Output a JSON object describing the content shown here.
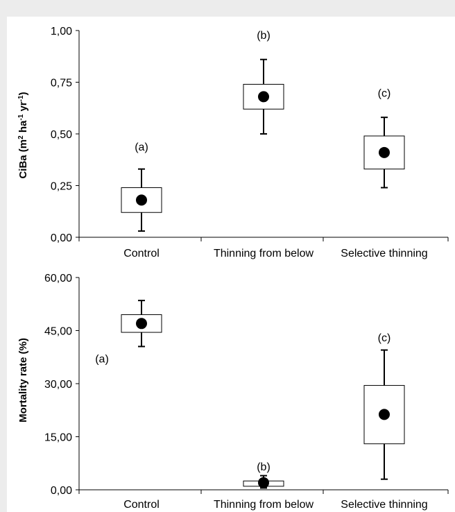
{
  "chart_data": [
    {
      "type": "box",
      "categories": [
        "Control",
        "Thinning from below",
        "Selective thinning"
      ],
      "ylabel_main": "CiBa (m",
      "ylabel_sup1": "2",
      "ylabel_mid": " ha",
      "ylabel_sup2": "-1",
      "ylabel_mid2": " yr",
      "ylabel_sup3": "-1",
      "ylabel_end": ")",
      "ylim": [
        0,
        1
      ],
      "yticks": [
        "0,00",
        "0,25",
        "0,50",
        "0,75",
        "1,00"
      ],
      "yticks_values": [
        0,
        0.25,
        0.5,
        0.75,
        1
      ],
      "boxes": [
        {
          "category": "Control",
          "whisker_low": 0.03,
          "q1": 0.12,
          "mean": 0.18,
          "q3": 0.24,
          "whisker_high": 0.33,
          "group": "(a)",
          "group_y": 0.42
        },
        {
          "category": "Thinning from below",
          "whisker_low": 0.5,
          "q1": 0.62,
          "mean": 0.68,
          "q3": 0.74,
          "whisker_high": 0.86,
          "group": "(b)",
          "group_y": 0.96
        },
        {
          "category": "Selective thinning",
          "whisker_low": 0.24,
          "q1": 0.33,
          "mean": 0.41,
          "q3": 0.49,
          "whisker_high": 0.58,
          "group": "(c)",
          "group_y": 0.68
        }
      ]
    },
    {
      "type": "box",
      "categories": [
        "Control",
        "Thinning from below",
        "Selective thinning"
      ],
      "ylabel": "Mortality rate (%)",
      "ylim": [
        0,
        60
      ],
      "yticks": [
        "0,00",
        "15,00",
        "30,00",
        "45,00",
        "60,00"
      ],
      "yticks_values": [
        0,
        15,
        30,
        45,
        60
      ],
      "boxes": [
        {
          "category": "Control",
          "whisker_low": 40.5,
          "q1": 44.5,
          "mean": 47.0,
          "q3": 49.5,
          "whisker_high": 53.5,
          "group": "(a)",
          "group_y": 36.0,
          "group_pos": "left"
        },
        {
          "category": "Thinning from below",
          "whisker_low": 0.5,
          "q1": 1.0,
          "mean": 2.0,
          "q3": 2.5,
          "whisker_high": 4.0,
          "group": "(b)",
          "group_y": 5.5
        },
        {
          "category": "Selective thinning",
          "whisker_low": 3.0,
          "q1": 13.0,
          "mean": 21.3,
          "q3": 29.5,
          "whisker_high": 39.5,
          "group": "(c)",
          "group_y": 42.0
        }
      ]
    }
  ]
}
